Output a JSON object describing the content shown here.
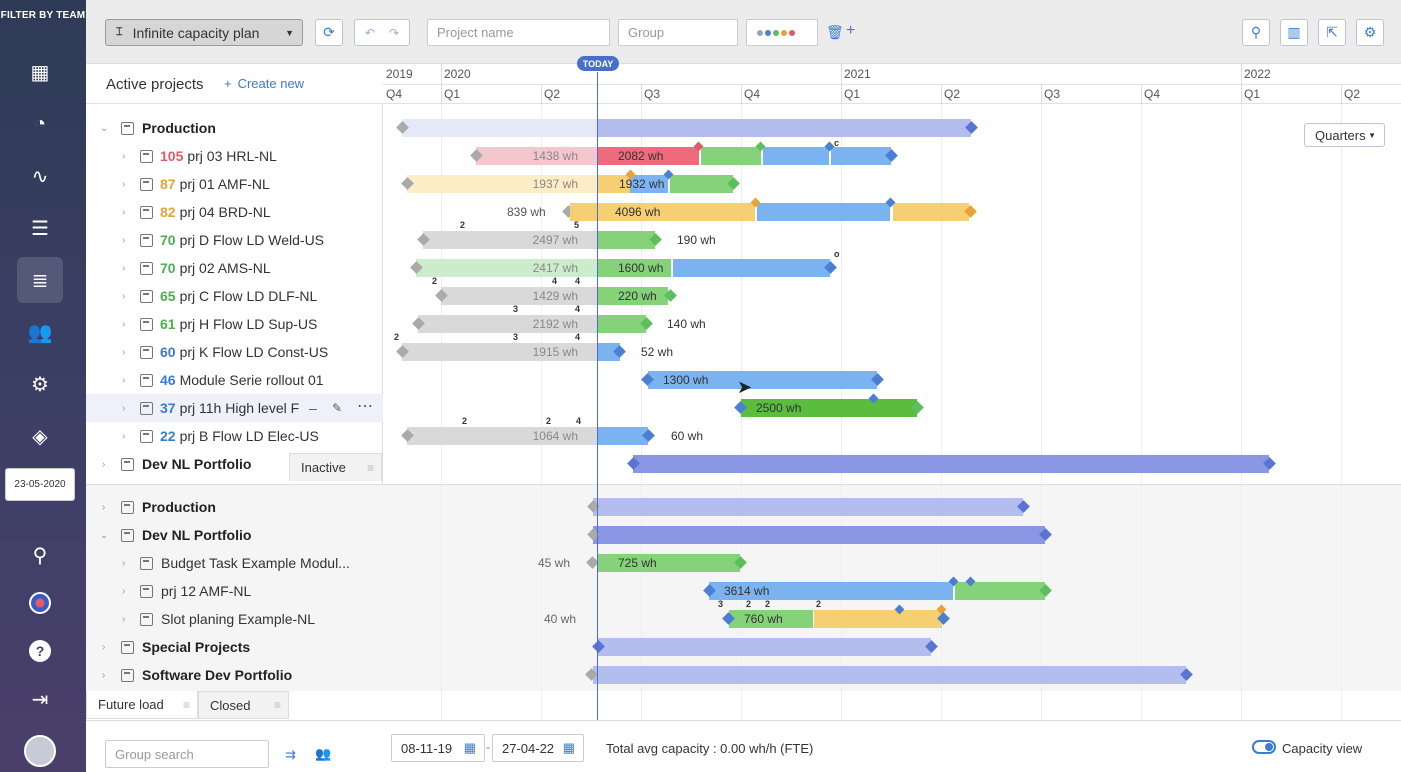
{
  "sidebar": {
    "title": "FILTER BY TEAM",
    "date": "23-05-2020",
    "icons": [
      "grid-icon",
      "dashboard-icon",
      "activity-icon",
      "list-icon",
      "gantt-icon",
      "users-icon",
      "settings-icon",
      "layers-icon",
      "search-chart-icon",
      "flag-icon",
      "help-icon",
      "logout-icon"
    ]
  },
  "toolbar": {
    "plan": "Infinite capacity plan",
    "project_placeholder": "Project name",
    "group_placeholder": "Group",
    "color_dots": [
      "#9aa4b8",
      "#4a7fd4",
      "#5cbf5c",
      "#e8a23a",
      "#e05a6a"
    ]
  },
  "header": {
    "title": "Active projects",
    "create": "Create new",
    "today": "TODAY",
    "years": [
      {
        "label": "2019"
      },
      {
        "label": "2020"
      },
      {
        "label": "2021"
      },
      {
        "label": "2022"
      }
    ],
    "quarters": [
      "Q4",
      "Q1",
      "Q2",
      "Q3",
      "Q4",
      "Q1",
      "Q2",
      "Q3",
      "Q4",
      "Q1",
      "Q2"
    ]
  },
  "quarters_select": "Quarters",
  "active": {
    "group": "Production",
    "projects": [
      {
        "num": "105",
        "num_color": "#e05a6a",
        "name": "prj 03 HRL-NL"
      },
      {
        "num": "87",
        "num_color": "#e8a23a",
        "name": "prj 01 AMF-NL"
      },
      {
        "num": "82",
        "num_color": "#e8a23a",
        "name": "prj 04 BRD-NL"
      },
      {
        "num": "70",
        "num_color": "#4caf50",
        "name": "prj D Flow LD Weld-US"
      },
      {
        "num": "70",
        "num_color": "#4caf50",
        "name": "prj 02 AMS-NL"
      },
      {
        "num": "65",
        "num_color": "#4caf50",
        "name": "prj C Flow LD DLF-NL"
      },
      {
        "num": "61",
        "num_color": "#4caf50",
        "name": "prj H Flow LD Sup-US"
      },
      {
        "num": "60",
        "num_color": "#3a7bd5",
        "name": "prj K Flow LD Const-US"
      },
      {
        "num": "46",
        "num_color": "#3a7bd5",
        "name": "Module Serie rollout 01"
      },
      {
        "num": "37",
        "num_color": "#3a7bd5",
        "name": "prj 11h High level F"
      },
      {
        "num": "22",
        "num_color": "#3a7bd5",
        "name": "prj B Flow LD Elec-US"
      }
    ],
    "group2": "Dev NL Portfolio",
    "wh": [
      "1438 wh",
      "2082 wh",
      "1937 wh",
      "1932 wh",
      "839 wh",
      "4096 wh",
      "2497 wh",
      "190 wh",
      "2417 wh",
      "1600 wh",
      "1429 wh",
      "220 wh",
      "2192 wh",
      "140 wh",
      "1915 wh",
      "52 wh",
      "1300 wh",
      "2500 wh",
      "1064 wh",
      "60 wh"
    ],
    "tags": [
      "c",
      "2",
      "5",
      "o",
      "2",
      "4",
      "4",
      "3",
      "4",
      "2",
      "3",
      "4",
      "2",
      "2",
      "4"
    ]
  },
  "inactive_tab": "Inactive",
  "inactive": {
    "groups": [
      "Production",
      "Dev NL Portfolio",
      "Special Projects",
      "Software Dev Portfolio"
    ],
    "projects": [
      "Budget Task Example Modul...",
      "prj 12 AMF-NL",
      "Slot planing Example-NL"
    ],
    "wh": [
      "45 wh",
      "725 wh",
      "3614 wh",
      "40 wh",
      "760 wh"
    ],
    "tags": [
      "3",
      "2",
      "2",
      "2"
    ]
  },
  "tabs": {
    "future": "Future load",
    "closed": "Closed"
  },
  "bottom": {
    "group_search": "Group search",
    "date_from": "08-11-19",
    "date_sep": "-",
    "date_to": "27-04-22",
    "capacity": "Total avg capacity : 0.00 wh/h (FTE)",
    "capacity_view": "Capacity view"
  },
  "colors": {
    "accent": "#3a7bd5",
    "summary": "#b3bdee",
    "summary_dark": "#8896e3",
    "red": "#ee6a7c",
    "green": "#85d27a",
    "green_dark": "#5abd3e",
    "blue": "#7ab3f0",
    "yellow": "#f5cf72",
    "gray": "#d9d9d9"
  }
}
